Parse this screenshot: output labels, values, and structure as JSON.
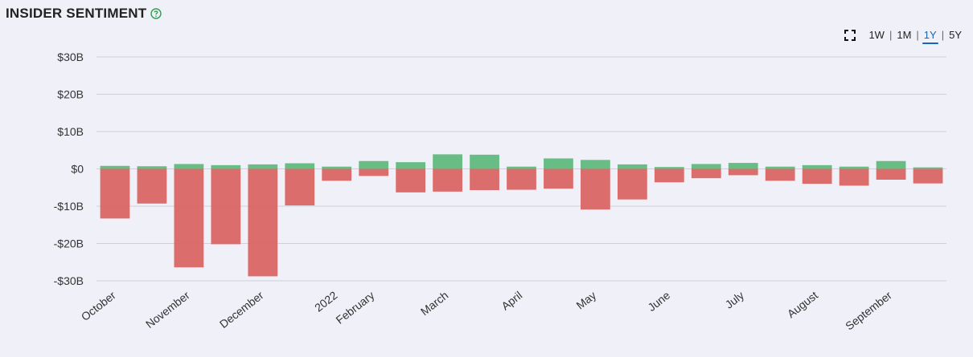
{
  "header": {
    "title": "INSIDER SENTIMENT",
    "help_icon": "help-circle-icon"
  },
  "range_selector": {
    "expand_icon": "expand-icon",
    "options": [
      "1W",
      "1M",
      "1Y",
      "5Y"
    ],
    "selected": "1Y"
  },
  "colors": {
    "positive": "#5cb97a",
    "negative": "#d9625f",
    "grid": "#d0d0dc"
  },
  "chart_data": {
    "type": "bar",
    "stacked": true,
    "ylim": [
      -30,
      30
    ],
    "y_ticks": [
      30,
      20,
      10,
      0,
      -10,
      -20,
      -30
    ],
    "y_tick_labels": [
      "$30B",
      "$20B",
      "$10B",
      "$0",
      "-$10B",
      "-$20B",
      "-$30B"
    ],
    "x_labels": [
      "October",
      "November",
      "December",
      "2022",
      "February",
      "March",
      "April",
      "May",
      "June",
      "July",
      "August",
      "September"
    ],
    "x_label_bar_index": [
      0,
      2,
      4,
      6,
      7,
      9,
      11,
      13,
      15,
      17,
      19,
      21
    ],
    "series": [
      {
        "key": "buys",
        "values": [
          0.8,
          0.7,
          1.3,
          1.0,
          1.2,
          1.5,
          0.6,
          2.1,
          1.8,
          3.9,
          3.8,
          0.6,
          2.8,
          2.4,
          1.2,
          0.5,
          1.3,
          1.6,
          0.6,
          1.0,
          0.6,
          2.1,
          0.4
        ]
      },
      {
        "key": "sells",
        "values": [
          -13.3,
          -9.3,
          -26.4,
          -20.2,
          -28.8,
          -9.8,
          -3.2,
          -1.9,
          -6.3,
          -6.1,
          -5.7,
          -5.6,
          -5.3,
          -10.9,
          -8.2,
          -3.6,
          -2.5,
          -1.7,
          -3.2,
          -4.0,
          -4.5,
          -2.9,
          -3.9
        ]
      }
    ]
  }
}
